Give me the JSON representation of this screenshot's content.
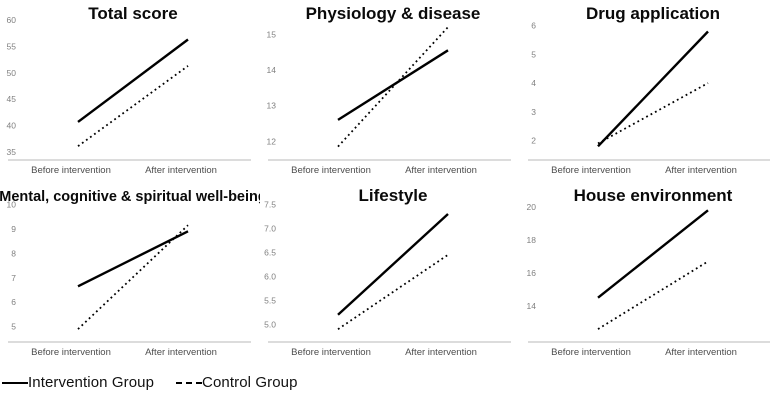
{
  "styles": {
    "line_color": "#000000",
    "axis_color": "#c8c8c8",
    "tick_color": "#808080",
    "xlabel_color": "#4d4d4d",
    "title_color": "#0a0a0a"
  },
  "legend": {
    "intervention_label": "Intervention Group",
    "control_label": "Control Group"
  },
  "chart_data": [
    {
      "type": "line",
      "title": "Total score",
      "categories": [
        "Before intervention",
        "After  intervention"
      ],
      "yticks": [
        "35",
        "40",
        "45",
        "50",
        "55",
        "60"
      ],
      "ylim": [
        35,
        60
      ],
      "series": [
        {
          "name": "Intervention Group",
          "style": "solid",
          "values": [
            40.7,
            56.3
          ]
        },
        {
          "name": "Control Group",
          "style": "dotted",
          "values": [
            36.1,
            51.3
          ]
        }
      ]
    },
    {
      "type": "line",
      "title": "Physiology & disease",
      "categories": [
        "Before intervention",
        "After  intervention"
      ],
      "yticks": [
        "12",
        "13",
        "14",
        "15"
      ],
      "ylim": [
        11.7,
        15.4
      ],
      "series": [
        {
          "name": "Intervention Group",
          "style": "solid",
          "values": [
            12.6,
            14.55
          ]
        },
        {
          "name": "Control Group",
          "style": "dotted",
          "values": [
            11.85,
            15.2
          ]
        }
      ]
    },
    {
      "type": "line",
      "title": "Drug application",
      "categories": [
        "Before intervention",
        "After intervention"
      ],
      "yticks": [
        "2",
        "3",
        "4",
        "5",
        "6"
      ],
      "ylim": [
        1.6,
        6.2
      ],
      "series": [
        {
          "name": "Intervention Group",
          "style": "solid",
          "values": [
            1.8,
            5.8
          ]
        },
        {
          "name": "Control Group",
          "style": "dotted",
          "values": [
            1.9,
            4.0
          ]
        }
      ]
    },
    {
      "type": "line",
      "title": "Mental, cognitive & spiritual well-being",
      "categories": [
        "Before intervention",
        "After intervention"
      ],
      "yticks": [
        "5",
        "6",
        "7",
        "8",
        "9",
        "10"
      ],
      "ylim": [
        4.7,
        10.1
      ],
      "series": [
        {
          "name": "Intervention Group",
          "style": "solid",
          "values": [
            6.65,
            8.9
          ]
        },
        {
          "name": "Control Group",
          "style": "dotted",
          "values": [
            4.9,
            9.15
          ]
        }
      ]
    },
    {
      "type": "line",
      "title": "Lifestyle",
      "categories": [
        "Before intervention",
        "After intervention"
      ],
      "yticks": [
        "5.0",
        "5.5",
        "6.0",
        "6.5",
        "7.0",
        "7.5"
      ],
      "ylim": [
        4.8,
        7.55
      ],
      "series": [
        {
          "name": "Intervention Group",
          "style": "solid",
          "values": [
            5.2,
            7.3
          ]
        },
        {
          "name": "Control Group",
          "style": "dotted",
          "values": [
            4.9,
            6.45
          ]
        }
      ]
    },
    {
      "type": "line",
      "title": "House environment",
      "categories": [
        "Before intervention",
        "After  intervention"
      ],
      "yticks": [
        "14",
        "16",
        "18",
        "20"
      ],
      "ylim": [
        12.3,
        20.3
      ],
      "series": [
        {
          "name": "Intervention Group",
          "style": "solid",
          "values": [
            14.5,
            19.8
          ]
        },
        {
          "name": "Control Group",
          "style": "dotted",
          "values": [
            12.6,
            16.7
          ]
        }
      ]
    }
  ]
}
